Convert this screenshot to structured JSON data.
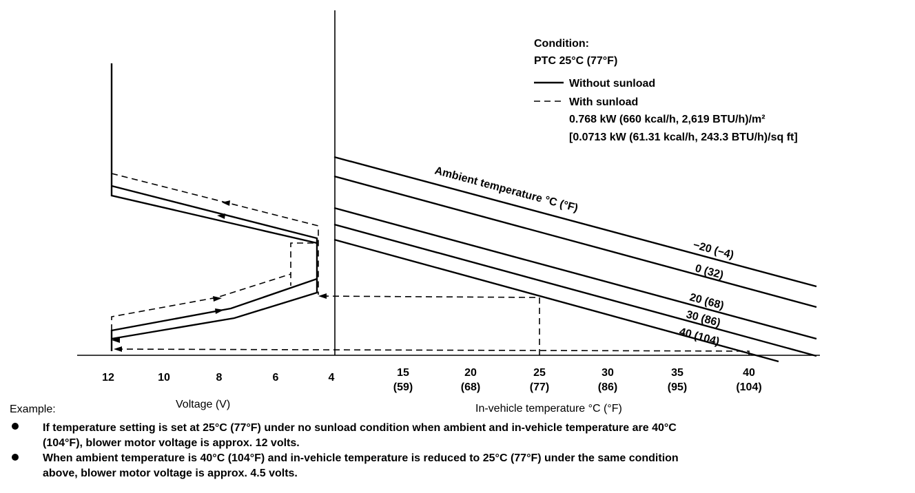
{
  "legend": {
    "condition_title": "Condition:",
    "condition": "PTC 25°C (77°F)",
    "without": "Without sunload",
    "with": "With sunload",
    "with_detail_1": "0.768 kW (660 kcal/h, 2,619 BTU/h)/m²",
    "with_detail_2": "[0.0713 kW (61.31 kcal/h, 243.3 BTU/h)/sq ft]"
  },
  "ambient_label": "Ambient temperature °C (°F)",
  "ambient_lines": [
    "−20 (−4)",
    "0 (32)",
    "20 (68)",
    "30 (86)",
    "40 (104)"
  ],
  "voltage_ticks": [
    "12",
    "10",
    "8",
    "6",
    "4"
  ],
  "voltage_label": "Voltage (V)",
  "temp_ticks": [
    [
      "15",
      "(59)"
    ],
    [
      "20",
      "(68)"
    ],
    [
      "25",
      "(77)"
    ],
    [
      "30",
      "(86)"
    ],
    [
      "35",
      "(95)"
    ],
    [
      "40",
      "(104)"
    ]
  ],
  "temp_label": "In-vehicle temperature °C (°F)",
  "example": {
    "title": "Example:",
    "items": [
      [
        "If temperature setting is set at 25°C (77°F) under no sunload condition when ambient and in-vehicle temperature are 40°C",
        "(104°F), blower motor voltage is approx. 12 volts."
      ],
      [
        "When ambient temperature is 40°C (104°F) and in-vehicle temperature is reduced to 25°C (77°F) under the same condition",
        "above, blower motor voltage is approx. 4.5 volts."
      ]
    ]
  }
}
